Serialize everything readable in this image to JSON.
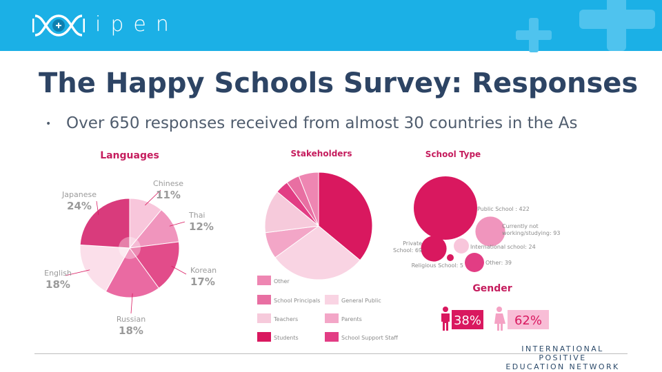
{
  "header": {
    "logo_text": "ipen",
    "brand_color": "#1bb0e6"
  },
  "slide": {
    "title": "The Happy Schools Survey: Responses",
    "bullet": "Over 650 responses received from almost 30 countries in the As"
  },
  "chart_data": [
    {
      "type": "pie",
      "title": "Languages",
      "categories": [
        "Chinese",
        "Thai",
        "Korean",
        "Russian",
        "English",
        "Japanese"
      ],
      "values": [
        11,
        12,
        17,
        18,
        18,
        24
      ],
      "value_labels": [
        "11%",
        "12%",
        "17%",
        "18%",
        "18%",
        "24%"
      ],
      "colors": [
        "#f8c6db",
        "#f095bd",
        "#e24c8a",
        "#ea6aa2",
        "#fbdfea",
        "#d93b7c"
      ]
    },
    {
      "type": "pie",
      "title": "Stakeholders",
      "categories": [
        "Students",
        "General Public",
        "Parents",
        "Teachers",
        "School Support Staff",
        "School Principals",
        "Other"
      ],
      "values": [
        36,
        29,
        8,
        13,
        4,
        4,
        6
      ],
      "colors": [
        "#d9185f",
        "#f9d4e3",
        "#f3a6c7",
        "#f6cadb",
        "#e23d84",
        "#e86fa2",
        "#ee86b2"
      ]
    },
    {
      "type": "scatter",
      "title": "School Type",
      "categories": [
        "Public School",
        "Currently not working/studying",
        "Private School",
        "International school",
        "Religious School",
        "Other"
      ],
      "values": [
        422,
        93,
        69,
        24,
        5,
        39
      ],
      "labels": [
        "Public School : 422",
        "Currently not working/studying: 93",
        "Private School: 69",
        "International school: 24",
        "Religious School: 5",
        "Other: 39"
      ],
      "colors": [
        "#d9185f",
        "#f095bd",
        "#d9185f",
        "#f8c6db",
        "#d9185f",
        "#e23d84"
      ]
    },
    {
      "type": "bar",
      "title": "Gender",
      "categories": [
        "Male",
        "Female"
      ],
      "values": [
        38,
        62
      ],
      "value_labels": [
        "38%",
        "62%"
      ],
      "colors": [
        "#d9185f",
        "#f8bdd6"
      ]
    }
  ],
  "footer": {
    "line1": "INTERNATIONAL POSITIVE",
    "line2": "EDUCATION NETWORK"
  }
}
